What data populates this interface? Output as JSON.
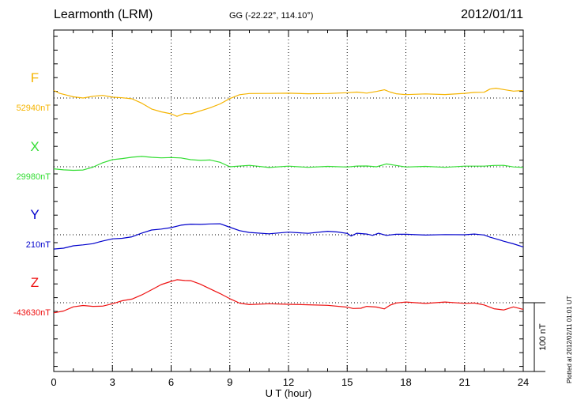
{
  "header": {
    "station": "Learmonth (LRM)",
    "coords": "GG (-22.22°, 114.10°)",
    "date": "2012/01/11"
  },
  "footer": {
    "plotted": "Plotted at 2012/02/11 01:01 UT"
  },
  "chart_data": {
    "type": "line",
    "title": "Learmonth (LRM)",
    "xlabel": "U T (hour)",
    "xlim": [
      0,
      24
    ],
    "xticks": [
      "0",
      "3",
      "6",
      "9",
      "12",
      "15",
      "18",
      "21",
      "24"
    ],
    "grid": true,
    "scale_bar": {
      "label": "100 nT",
      "value": 100
    },
    "series": [
      {
        "name": "F",
        "baseline_label": "52940nT",
        "baseline": 52940,
        "color": "#f5b400",
        "x": [
          0,
          0.3,
          0.7,
          1,
          1.5,
          2,
          2.5,
          3,
          3.5,
          4,
          4.5,
          5,
          5.5,
          6,
          6.3,
          6.7,
          7,
          7.5,
          8,
          8.5,
          9,
          9.5,
          10,
          11,
          12,
          13,
          14,
          15,
          15.5,
          16,
          16.5,
          16.9,
          17.2,
          17.5,
          18,
          19,
          20,
          21,
          21.5,
          22,
          22.3,
          22.6,
          23,
          23.5,
          24
        ],
        "y": [
          52951,
          52946,
          52943,
          52942,
          52941,
          52942,
          52943,
          52942,
          52941,
          52938,
          52932,
          52925,
          52920,
          52916,
          52914,
          52917,
          52918,
          52921,
          52925,
          52932,
          52940,
          52944,
          52946,
          52947,
          52947,
          52946,
          52947,
          52947,
          52948,
          52948,
          52950,
          52953,
          52948,
          52946,
          52946,
          52945,
          52946,
          52946,
          52949,
          52949,
          52952,
          52955,
          52952,
          52951,
          52951
        ]
      },
      {
        "name": "X",
        "baseline_label": "29980nT",
        "baseline": 29980,
        "color": "#33dd33",
        "x": [
          0,
          0.5,
          1,
          1.5,
          2,
          2.5,
          3,
          3.5,
          4,
          4.5,
          5,
          5.5,
          6,
          6.5,
          7,
          7.5,
          8,
          8.5,
          9,
          10,
          11,
          12,
          13,
          14,
          15,
          15.5,
          16,
          16.5,
          17,
          17.5,
          18,
          19,
          20,
          21,
          22,
          22.5,
          23,
          23.5,
          24
        ],
        "y": [
          29978,
          29975,
          29974,
          29976,
          29980,
          29985,
          29990,
          29993,
          29994,
          29994,
          29994,
          29994,
          29993,
          29992,
          29991,
          29990,
          29989,
          29986,
          29981,
          29981,
          29980,
          29980,
          29980,
          29980,
          29980,
          29980,
          29981,
          29981,
          29984,
          29981,
          29980,
          29980,
          29980,
          29980,
          29982,
          29982,
          29981,
          29980,
          29980
        ]
      },
      {
        "name": "Y",
        "baseline_label": "210nT",
        "baseline": 210,
        "color": "#0000cc",
        "x": [
          0,
          0.5,
          1,
          1.5,
          2,
          2.5,
          3,
          3.5,
          4,
          4.5,
          5,
          5.5,
          6,
          6.5,
          7,
          7.5,
          8,
          8.5,
          9,
          9.5,
          10,
          11,
          12,
          13,
          14,
          14.5,
          15,
          15.2,
          15.5,
          16,
          16.3,
          16.6,
          17,
          17.5,
          18,
          19,
          20,
          21,
          21.5,
          22,
          22.3,
          22.6,
          23,
          23.5,
          24
        ],
        "y": [
          190,
          191,
          193,
          195,
          198,
          201,
          203,
          205,
          208,
          212,
          216,
          219,
          221,
          223,
          225,
          226,
          226,
          225,
          221,
          217,
          213,
          212,
          213,
          213,
          214,
          214,
          213,
          209,
          212,
          210,
          210,
          212,
          210,
          210,
          210,
          210,
          210,
          210,
          210,
          210,
          207,
          203,
          200,
          196,
          193
        ]
      },
      {
        "name": "Z",
        "baseline_label": "-43630nT",
        "baseline": -43630,
        "color": "#ee1111",
        "x": [
          0,
          0.5,
          1,
          1.5,
          2,
          2.5,
          3,
          3.5,
          4,
          4.5,
          5,
          5.5,
          6,
          6.3,
          6.7,
          7,
          7.5,
          8,
          8.5,
          9,
          9.5,
          10,
          11,
          12,
          13,
          14,
          15,
          15.3,
          15.7,
          16,
          16.5,
          16.9,
          17.2,
          17.5,
          18,
          19,
          20,
          21,
          21.5,
          22,
          22.5,
          23,
          23.5,
          24
        ],
        "y": [
          -43645,
          -43641,
          -43636,
          -43635,
          -43635,
          -43634,
          -43632,
          -43628,
          -43624,
          -43618,
          -43612,
          -43604,
          -43598,
          -43597,
          -43597,
          -43599,
          -43603,
          -43609,
          -43617,
          -43625,
          -43630,
          -43632,
          -43632,
          -43632,
          -43633,
          -43634,
          -43636,
          -43638,
          -43637,
          -43636,
          -43637,
          -43640,
          -43633,
          -43630,
          -43630,
          -43630,
          -43630,
          -43630,
          -43631,
          -43634,
          -43638,
          -43640,
          -43637,
          -43640
        ]
      }
    ]
  }
}
